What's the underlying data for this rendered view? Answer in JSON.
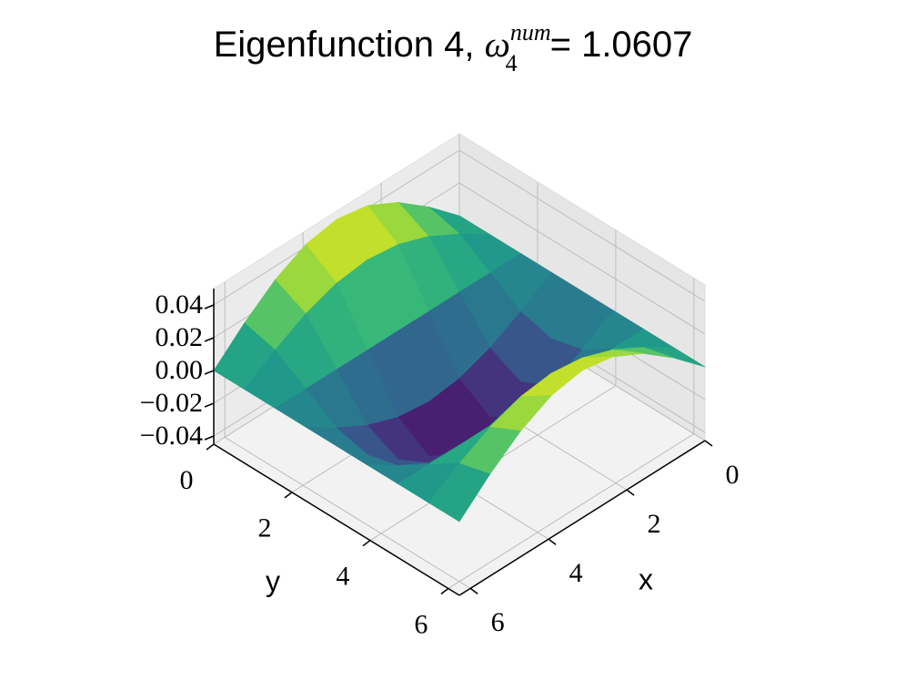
{
  "chart_data": {
    "type": "surface3d",
    "title": {
      "text": "Eigenfunction 4, ",
      "symbol": "ω",
      "subscript": "4",
      "superscript": "num",
      "value": "= 1.0607"
    },
    "xlabel": "x",
    "ylabel": "y",
    "x": [
      0,
      0.785,
      1.571,
      2.356,
      3.142,
      3.927,
      4.712,
      5.498,
      6.283
    ],
    "y": [
      0,
      0.785,
      1.571,
      2.356,
      3.142,
      3.927,
      4.712,
      5.498,
      6.283
    ],
    "z": [
      [
        0,
        0.0172,
        0.0318,
        0.0416,
        0.045,
        0.0416,
        0.0318,
        0.0172,
        0
      ],
      [
        0,
        0.0122,
        0.0225,
        0.0294,
        0.0318,
        0.0294,
        0.0225,
        0.0122,
        0
      ],
      [
        0,
        0,
        0,
        0,
        0,
        0,
        0,
        0,
        0
      ],
      [
        0,
        -0.0122,
        -0.0225,
        -0.0294,
        -0.0318,
        -0.0294,
        -0.0225,
        -0.0122,
        0
      ],
      [
        0,
        -0.0172,
        -0.0318,
        -0.0416,
        -0.045,
        -0.0416,
        -0.0318,
        -0.0172,
        0
      ],
      [
        0,
        -0.0122,
        -0.0225,
        -0.0294,
        -0.0318,
        -0.0294,
        -0.0225,
        -0.0122,
        0
      ],
      [
        0,
        0,
        0,
        0,
        0,
        0,
        0,
        0,
        0
      ],
      [
        0,
        0.0122,
        0.0225,
        0.0294,
        0.0318,
        0.0294,
        0.0225,
        0.0122,
        0
      ],
      [
        0,
        0.0172,
        0.0318,
        0.0416,
        0.045,
        0.0416,
        0.0318,
        0.0172,
        0
      ]
    ],
    "xlim": [
      0,
      6.283
    ],
    "ylim": [
      0,
      6.283
    ],
    "zlim": [
      -0.045,
      0.05
    ],
    "xticks": [
      0,
      2,
      4,
      6
    ],
    "yticks": [
      0,
      2,
      4,
      6
    ],
    "zticks": [
      {
        "value": -0.04,
        "label": "−0.04"
      },
      {
        "value": -0.02,
        "label": "−0.02"
      },
      {
        "value": 0,
        "label": "0.00"
      },
      0.02,
      0.04
    ],
    "colormap": "viridis",
    "grid": true
  }
}
